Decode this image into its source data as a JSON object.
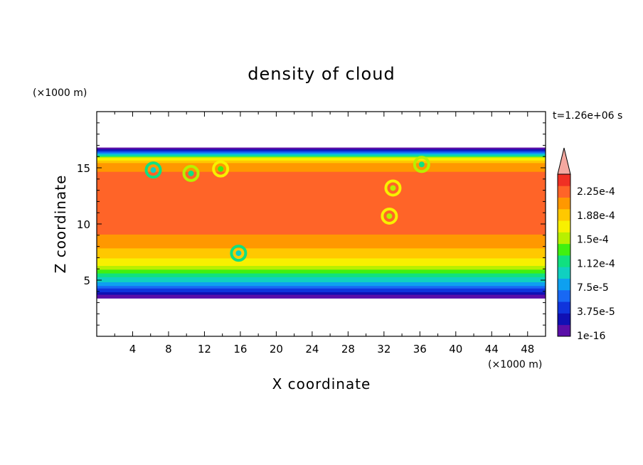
{
  "chart_data": {
    "type": "heatmap",
    "title": "density of cloud",
    "xlabel": "X coordinate",
    "ylabel": "Z coordinate",
    "x_unit": "(×1000 m)",
    "y_unit": "(×1000 m)",
    "time_label": "t=1.26e+06 s",
    "xlim": [
      0,
      50
    ],
    "ylim": [
      0,
      20
    ],
    "x_ticks": [
      4,
      8,
      12,
      16,
      20,
      24,
      28,
      32,
      36,
      40,
      44,
      48
    ],
    "y_ticks": [
      5,
      10,
      15
    ],
    "field": {
      "cloud_base_km": 3.4,
      "cloud_top_km": 16.8,
      "profile": [
        {
          "z": 3.4,
          "value": 1e-16
        },
        {
          "z": 3.8,
          "value": 2.5e-05
        },
        {
          "z": 4.3,
          "value": 6e-05
        },
        {
          "z": 4.9,
          "value": 9.5e-05
        },
        {
          "z": 5.6,
          "value": 0.00013
        },
        {
          "z": 6.3,
          "value": 0.00017
        },
        {
          "z": 7.2,
          "value": 0.000195
        },
        {
          "z": 8.3,
          "value": 0.000215
        },
        {
          "z": 9.5,
          "value": 0.00023
        },
        {
          "z": 14.5,
          "value": 0.00023
        },
        {
          "z": 15.4,
          "value": 0.00021
        },
        {
          "z": 15.9,
          "value": 0.00017
        },
        {
          "z": 16.2,
          "value": 0.0001
        },
        {
          "z": 16.5,
          "value": 5e-05
        },
        {
          "z": 16.8,
          "value": 1e-16
        }
      ],
      "features": [
        {
          "kind": "eddy",
          "x": 6.3,
          "z": 14.8,
          "value": 0.00013
        },
        {
          "kind": "eddy",
          "x": 10.5,
          "z": 14.5,
          "value": 0.00015
        },
        {
          "kind": "eddy",
          "x": 13.8,
          "z": 14.9,
          "value": 0.00017
        },
        {
          "kind": "eddy",
          "x": 33.0,
          "z": 13.2,
          "value": 0.00018
        },
        {
          "kind": "eddy",
          "x": 32.6,
          "z": 10.7,
          "value": 0.00018
        },
        {
          "kind": "eddy",
          "x": 36.2,
          "z": 15.3,
          "value": 0.00015
        },
        {
          "kind": "eddy",
          "x": 15.8,
          "z": 7.4,
          "value": 0.00012
        }
      ]
    },
    "colorbar": {
      "labels": [
        "2.25e-4",
        "1.88e-4",
        "1.5e-4",
        "1.12e-4",
        "7.5e-5",
        "3.75e-5",
        "1e-16"
      ],
      "levels": [
        1e-16,
        1.875e-05,
        3.75e-05,
        5.625e-05,
        7.5e-05,
        9.375e-05,
        0.0001125,
        0.00013125,
        0.00015,
        0.00016875,
        0.0001875,
        0.00020625,
        0.000225,
        0.00024375
      ],
      "colors": [
        "#5a0fa8",
        "#1010b4",
        "#1034dc",
        "#1868f4",
        "#0ea0f0",
        "#10d0c0",
        "#10e080",
        "#40f010",
        "#b8f000",
        "#f8f000",
        "#ffc800",
        "#ff9800",
        "#ff6428",
        "#f03024"
      ],
      "over_color": "#f4a8a0"
    }
  }
}
